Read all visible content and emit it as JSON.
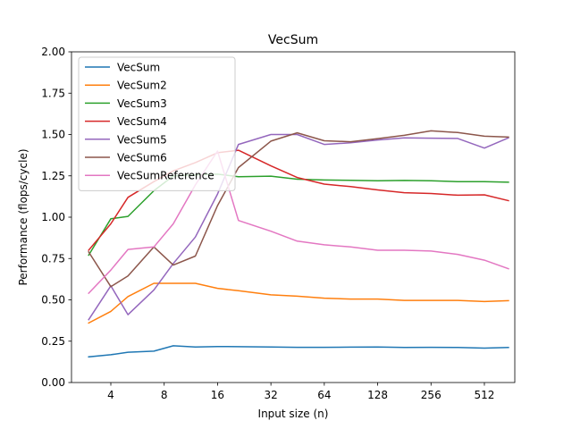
{
  "chart_data": {
    "type": "line",
    "title": "VecSum",
    "xlabel": "Input size (n)",
    "ylabel": "Performance (flops/cycle)",
    "xscale": "log2",
    "xticks": [
      4,
      8,
      16,
      32,
      64,
      128,
      256,
      512
    ],
    "xlim": [
      2.4,
      760
    ],
    "ylim": [
      0,
      2
    ],
    "yticks": [
      "0.00",
      "0.25",
      "0.50",
      "0.75",
      "1.00",
      "1.25",
      "1.50",
      "1.75",
      "2.00"
    ],
    "legend_position": "upper-left",
    "x": [
      3,
      4,
      5,
      7,
      9,
      12,
      16,
      21,
      32,
      45,
      64,
      90,
      128,
      181,
      256,
      362,
      512,
      700
    ],
    "series": [
      {
        "name": "VecSum",
        "color": "#1f77b4",
        "values": [
          0.155,
          0.168,
          0.183,
          0.19,
          0.222,
          0.215,
          0.218,
          0.217,
          0.215,
          0.213,
          0.213,
          0.214,
          0.215,
          0.212,
          0.213,
          0.212,
          0.208,
          0.212
        ]
      },
      {
        "name": "VecSum2",
        "color": "#ff7f0e",
        "values": [
          0.36,
          0.43,
          0.52,
          0.6,
          0.6,
          0.6,
          0.57,
          0.555,
          0.53,
          0.522,
          0.51,
          0.505,
          0.505,
          0.497,
          0.497,
          0.497,
          0.49,
          0.495
        ]
      },
      {
        "name": "VecSum3",
        "color": "#2ca02c",
        "values": [
          0.77,
          0.99,
          1.005,
          1.16,
          1.25,
          1.255,
          1.26,
          1.245,
          1.248,
          1.23,
          1.225,
          1.223,
          1.22,
          1.222,
          1.22,
          1.215,
          1.215,
          1.212
        ]
      },
      {
        "name": "VecSum4",
        "color": "#d62728",
        "values": [
          0.8,
          0.96,
          1.12,
          1.215,
          1.28,
          1.33,
          1.39,
          1.405,
          1.31,
          1.24,
          1.2,
          1.185,
          1.165,
          1.148,
          1.143,
          1.133,
          1.135,
          1.1
        ]
      },
      {
        "name": "VecSum5",
        "color": "#9467bd",
        "values": [
          0.38,
          0.585,
          0.41,
          0.56,
          0.72,
          0.88,
          1.14,
          1.44,
          1.5,
          1.5,
          1.44,
          1.45,
          1.467,
          1.48,
          1.478,
          1.476,
          1.418,
          1.48
        ]
      },
      {
        "name": "VecSum6",
        "color": "#8c564b",
        "values": [
          0.79,
          0.58,
          0.645,
          0.82,
          0.71,
          0.765,
          1.07,
          1.3,
          1.46,
          1.51,
          1.462,
          1.456,
          1.475,
          1.495,
          1.522,
          1.512,
          1.49,
          1.485
        ]
      },
      {
        "name": "VecSumReference",
        "color": "#e377c2",
        "values": [
          0.54,
          0.68,
          0.805,
          0.82,
          0.96,
          1.195,
          1.4,
          0.98,
          0.915,
          0.855,
          0.833,
          0.82,
          0.8,
          0.8,
          0.795,
          0.775,
          0.74,
          0.688
        ]
      }
    ]
  }
}
